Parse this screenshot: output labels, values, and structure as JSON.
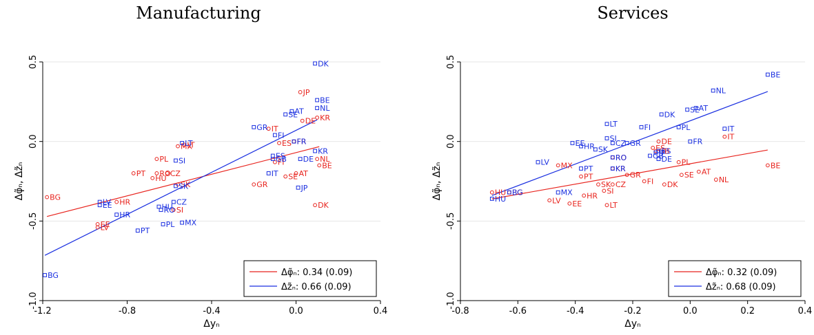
{
  "colors": {
    "red": "#e8231d",
    "blue": "#1a2fe0",
    "grid": "#e6e6e6",
    "axis": "#000000"
  },
  "chart_data": [
    {
      "type": "scatter",
      "title": "Manufacturing",
      "xlabel": "Δyₙ",
      "ylabel": "Δφ̃ₙ, Δz̃ₙ",
      "xlim": [
        -1.2,
        0.4
      ],
      "ylim": [
        -1.0,
        0.5
      ],
      "xticks": [
        -1.2,
        -0.8,
        -0.4,
        0.0,
        0.4
      ],
      "xtick_labels": [
        "-1.2",
        "-0.8",
        "-0.4",
        "0.0",
        "0.4"
      ],
      "yticks": [
        -1.0,
        -0.5,
        0.0,
        0.5
      ],
      "ytick_labels": [
        "-1.0",
        "-0.5",
        "0.0",
        "0.5"
      ],
      "grid": "horizontal",
      "legend_position": "bottom-right",
      "series": [
        {
          "name": "Δφ̃ₙ: 0.34 (0.09)",
          "color": "red",
          "marker": "circle",
          "fit": {
            "intercept": -0.07,
            "slope": 0.34
          },
          "points": [
            {
              "label": "JP",
              "x": 0.02,
              "y": 0.31
            },
            {
              "label": "KR",
              "x": 0.1,
              "y": 0.15
            },
            {
              "label": "DE",
              "x": 0.03,
              "y": 0.13
            },
            {
              "label": "IT",
              "x": -0.13,
              "y": 0.08
            },
            {
              "label": "ES",
              "x": -0.08,
              "y": -0.01
            },
            {
              "label": "FR",
              "x": -0.01,
              "y": 0.0
            },
            {
              "label": "NL",
              "x": 0.1,
              "y": -0.11
            },
            {
              "label": "BE",
              "x": 0.11,
              "y": -0.15
            },
            {
              "label": "FI",
              "x": -0.1,
              "y": -0.13
            },
            {
              "label": "AT",
              "x": 0.0,
              "y": -0.2
            },
            {
              "label": "SE",
              "x": -0.05,
              "y": -0.22
            },
            {
              "label": "GR",
              "x": -0.2,
              "y": -0.27
            },
            {
              "label": "DK",
              "x": 0.09,
              "y": -0.4
            },
            {
              "label": "MX",
              "x": -0.56,
              "y": -0.03
            },
            {
              "label": "LT",
              "x": -0.53,
              "y": -0.02
            },
            {
              "label": "PL",
              "x": -0.66,
              "y": -0.11
            },
            {
              "label": "CZ",
              "x": -0.61,
              "y": -0.2
            },
            {
              "label": "RO",
              "x": -0.66,
              "y": -0.2
            },
            {
              "label": "HU",
              "x": -0.68,
              "y": -0.23
            },
            {
              "label": "PT",
              "x": -0.77,
              "y": -0.2
            },
            {
              "label": "BG",
              "x": -1.18,
              "y": -0.35
            },
            {
              "label": "HR",
              "x": -0.85,
              "y": -0.38
            },
            {
              "label": "SI",
              "x": -0.58,
              "y": -0.43
            },
            {
              "label": "EE",
              "x": -0.94,
              "y": -0.52
            },
            {
              "label": "LV",
              "x": -0.94,
              "y": -0.54
            },
            {
              "label": "SK",
              "x": -0.56,
              "y": -0.27
            }
          ]
        },
        {
          "name": "Δz̃ₙ: 0.66 (0.09)",
          "color": "blue",
          "marker": "square",
          "fit": {
            "intercept": 0.07,
            "slope": 0.66
          },
          "points": [
            {
              "label": "DK",
              "x": 0.09,
              "y": 0.49
            },
            {
              "label": "BE",
              "x": 0.1,
              "y": 0.26
            },
            {
              "label": "NL",
              "x": 0.1,
              "y": 0.21
            },
            {
              "label": "AT",
              "x": -0.02,
              "y": 0.19
            },
            {
              "label": "SE",
              "x": -0.05,
              "y": 0.17
            },
            {
              "label": "GR",
              "x": -0.2,
              "y": 0.09
            },
            {
              "label": "FI",
              "x": -0.1,
              "y": 0.04
            },
            {
              "label": "FR",
              "x": -0.01,
              "y": 0.0
            },
            {
              "label": "KR",
              "x": 0.09,
              "y": -0.06
            },
            {
              "label": "ES",
              "x": -0.11,
              "y": -0.09
            },
            {
              "label": "GB",
              "x": -0.11,
              "y": -0.11
            },
            {
              "label": "DE",
              "x": 0.02,
              "y": -0.11
            },
            {
              "label": "IT",
              "x": -0.13,
              "y": -0.2
            },
            {
              "label": "JP",
              "x": 0.01,
              "y": -0.29
            },
            {
              "label": "LT",
              "x": -0.54,
              "y": -0.01
            },
            {
              "label": "SI",
              "x": -0.57,
              "y": -0.12
            },
            {
              "label": "SK",
              "x": -0.57,
              "y": -0.28
            },
            {
              "label": "CZ",
              "x": -0.58,
              "y": -0.38
            },
            {
              "label": "HU",
              "x": -0.65,
              "y": -0.41
            },
            {
              "label": "RO",
              "x": -0.64,
              "y": -0.43
            },
            {
              "label": "MX",
              "x": -0.54,
              "y": -0.51
            },
            {
              "label": "PL",
              "x": -0.63,
              "y": -0.52
            },
            {
              "label": "PT",
              "x": -0.75,
              "y": -0.56
            },
            {
              "label": "LV",
              "x": -0.93,
              "y": -0.38
            },
            {
              "label": "EE",
              "x": -0.93,
              "y": -0.4
            },
            {
              "label": "HR",
              "x": -0.85,
              "y": -0.46
            },
            {
              "label": "BG",
              "x": -1.19,
              "y": -0.84
            }
          ]
        }
      ]
    },
    {
      "type": "scatter",
      "title": "Services",
      "xlabel": "Δyₙ",
      "ylabel": "Δφ̃ₙ, Δz̃ₙ",
      "xlim": [
        -0.8,
        0.4
      ],
      "ylim": [
        -1.0,
        0.5
      ],
      "xticks": [
        -0.8,
        -0.6,
        -0.4,
        -0.2,
        0.0,
        0.2,
        0.4
      ],
      "xtick_labels": [
        "-0.8",
        "-0.6",
        "-0.4",
        "-0.2",
        "0.0",
        "0.2",
        "0.4"
      ],
      "yticks": [
        -1.0,
        -0.5,
        0.0,
        0.5
      ],
      "ytick_labels": [
        "-1.0",
        "-0.5",
        "0.0",
        "0.5"
      ],
      "grid": "horizontal",
      "legend_position": "bottom-right",
      "series": [
        {
          "name": "Δφ̃ₙ: 0.32 (0.09)",
          "color": "red",
          "marker": "circle",
          "fit": {
            "intercept": -0.14,
            "slope": 0.32
          },
          "points": [
            {
              "label": "DE",
              "x": -0.11,
              "y": 0.0
            },
            {
              "label": "IT",
              "x": 0.12,
              "y": 0.03
            },
            {
              "label": "ES",
              "x": -0.13,
              "y": -0.04
            },
            {
              "label": "GB",
              "x": -0.12,
              "y": -0.06
            },
            {
              "label": "RO",
              "x": -0.27,
              "y": -0.1
            },
            {
              "label": "KR",
              "x": -0.27,
              "y": -0.17
            },
            {
              "label": "PL",
              "x": -0.04,
              "y": -0.13
            },
            {
              "label": "BE",
              "x": 0.27,
              "y": -0.15
            },
            {
              "label": "MX",
              "x": -0.46,
              "y": -0.15
            },
            {
              "label": "AT",
              "x": 0.03,
              "y": -0.19
            },
            {
              "label": "GR",
              "x": -0.22,
              "y": -0.21
            },
            {
              "label": "SE",
              "x": -0.03,
              "y": -0.21
            },
            {
              "label": "PT",
              "x": -0.38,
              "y": -0.22
            },
            {
              "label": "NL",
              "x": 0.09,
              "y": -0.24
            },
            {
              "label": "FI",
              "x": -0.16,
              "y": -0.25
            },
            {
              "label": "CZ",
              "x": -0.27,
              "y": -0.27
            },
            {
              "label": "DK",
              "x": -0.09,
              "y": -0.27
            },
            {
              "label": "SK",
              "x": -0.32,
              "y": -0.27
            },
            {
              "label": "SI",
              "x": -0.3,
              "y": -0.31
            },
            {
              "label": "BG",
              "x": -0.63,
              "y": -0.32
            },
            {
              "label": "HU",
              "x": -0.69,
              "y": -0.32
            },
            {
              "label": "HR",
              "x": -0.37,
              "y": -0.34
            },
            {
              "label": "LV",
              "x": -0.49,
              "y": -0.37
            },
            {
              "label": "EE",
              "x": -0.42,
              "y": -0.39
            },
            {
              "label": "LT",
              "x": -0.29,
              "y": -0.4
            }
          ]
        },
        {
          "name": "Δz̃ₙ: 0.68 (0.09)",
          "color": "blue",
          "marker": "square",
          "fit": {
            "intercept": 0.13,
            "slope": 0.68
          },
          "points": [
            {
              "label": "BE",
              "x": 0.27,
              "y": 0.42
            },
            {
              "label": "NL",
              "x": 0.08,
              "y": 0.32
            },
            {
              "label": "SE",
              "x": -0.01,
              "y": 0.2
            },
            {
              "label": "AT",
              "x": 0.02,
              "y": 0.21
            },
            {
              "label": "DK",
              "x": -0.1,
              "y": 0.17
            },
            {
              "label": "LT",
              "x": -0.29,
              "y": 0.11
            },
            {
              "label": "IT",
              "x": 0.12,
              "y": 0.08
            },
            {
              "label": "PL",
              "x": -0.04,
              "y": 0.09
            },
            {
              "label": "FI",
              "x": -0.17,
              "y": 0.09
            },
            {
              "label": "SI",
              "x": -0.29,
              "y": 0.02
            },
            {
              "label": "FR",
              "x": 0.0,
              "y": 0.0
            },
            {
              "label": "CZ",
              "x": -0.27,
              "y": -0.01
            },
            {
              "label": "GR",
              "x": -0.22,
              "y": -0.01
            },
            {
              "label": "EE",
              "x": -0.41,
              "y": -0.01
            },
            {
              "label": "HR",
              "x": -0.38,
              "y": -0.03
            },
            {
              "label": "SK",
              "x": -0.33,
              "y": -0.05
            },
            {
              "label": "ES",
              "x": -0.11,
              "y": -0.06
            },
            {
              "label": "JP",
              "x": -0.12,
              "y": -0.07
            },
            {
              "label": "GB",
              "x": -0.14,
              "y": -0.09
            },
            {
              "label": "DE",
              "x": -0.11,
              "y": -0.11
            },
            {
              "label": "RO",
              "x": -0.27,
              "y": -0.1
            },
            {
              "label": "KR",
              "x": -0.27,
              "y": -0.17
            },
            {
              "label": "LV",
              "x": -0.53,
              "y": -0.13
            },
            {
              "label": "PT",
              "x": -0.38,
              "y": -0.17
            },
            {
              "label": "MX",
              "x": -0.46,
              "y": -0.32
            },
            {
              "label": "BG",
              "x": -0.63,
              "y": -0.32
            },
            {
              "label": "HU",
              "x": -0.69,
              "y": -0.36
            }
          ]
        }
      ]
    }
  ]
}
